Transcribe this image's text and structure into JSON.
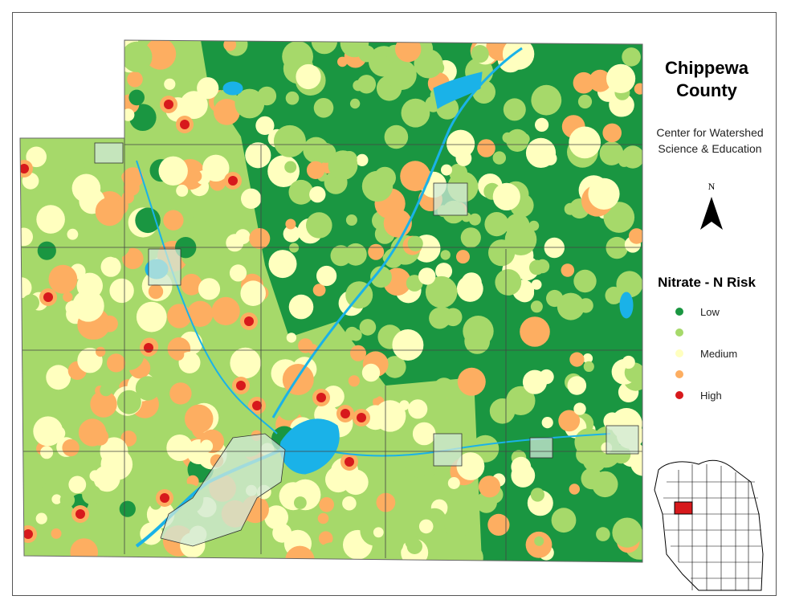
{
  "title": [
    "Chippewa",
    "County"
  ],
  "subtitle": [
    "Center for Watershed",
    "Science & Education"
  ],
  "north_label": "N",
  "legend": {
    "title": "Nitrate - N Risk",
    "items": [
      {
        "color": "#1a9641",
        "label": "Low"
      },
      {
        "color": "#a6d96a"
      },
      {
        "color": "#ffffbf",
        "label": "Medium"
      },
      {
        "color": "#fdae61"
      },
      {
        "color": "#d7191c",
        "label": "High"
      }
    ]
  }
}
